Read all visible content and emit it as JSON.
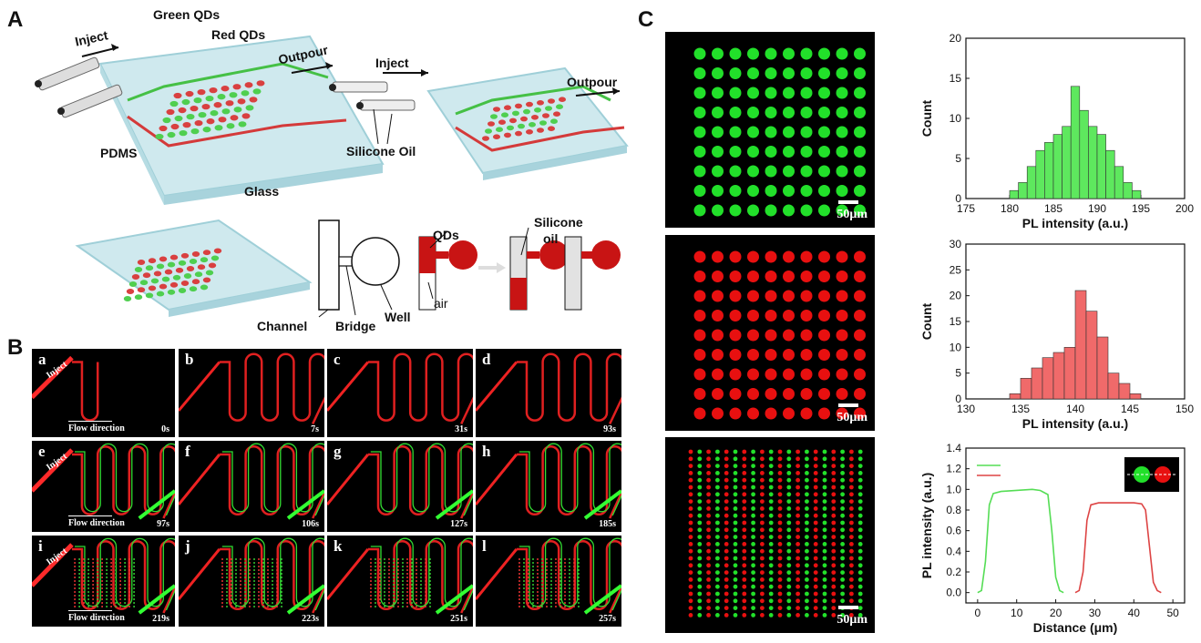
{
  "panels": {
    "A": {
      "letter": "A",
      "labels": {
        "inject": "Inject",
        "green_qds": "Green QDs",
        "red_qds": "Red QDs",
        "outpour": "Outpour",
        "pdms": "PDMS",
        "glass": "Glass",
        "inject2": "Inject",
        "outpour2": "Outpour",
        "silicone_oil": "Silicone Oil",
        "channel": "Channel",
        "bridge": "Bridge",
        "well": "Well",
        "qds": "QDs",
        "air": "air",
        "silicone_oil_line1": "Silicone",
        "silicone_oil_line2": "oil"
      }
    },
    "B": {
      "letter": "B",
      "inject_label": "Inject",
      "flow_label": "Flow direction",
      "tiles": [
        {
          "letter": "a",
          "time": "0s"
        },
        {
          "letter": "b",
          "time": "7s"
        },
        {
          "letter": "c",
          "time": "31s"
        },
        {
          "letter": "d",
          "time": "93s"
        },
        {
          "letter": "e",
          "time": "97s"
        },
        {
          "letter": "f",
          "time": "106s"
        },
        {
          "letter": "g",
          "time": "127s"
        },
        {
          "letter": "h",
          "time": "185s"
        },
        {
          "letter": "i",
          "time": "219s"
        },
        {
          "letter": "j",
          "time": "223s"
        },
        {
          "letter": "k",
          "time": "251s"
        },
        {
          "letter": "l",
          "time": "257s"
        }
      ]
    },
    "C": {
      "letter": "C",
      "scale_bar": "50μm",
      "colors": {
        "green": "#22e02a",
        "red": "#e81010"
      }
    }
  },
  "chart_data": [
    {
      "type": "bar",
      "subtype": "histogram",
      "color": "#5ee85e",
      "xlabel": "PL intensity (a.u.)",
      "ylabel": "Count",
      "xlim": [
        175,
        200
      ],
      "ylim": [
        0,
        20
      ],
      "xticks": [
        175,
        180,
        185,
        190,
        195,
        200
      ],
      "yticks": [
        0,
        5,
        10,
        15,
        20
      ],
      "bin_width": 1,
      "bin_starts": [
        180,
        181,
        182,
        183,
        184,
        185,
        186,
        187,
        188,
        189,
        190,
        191,
        192,
        193,
        194
      ],
      "values": [
        1,
        2,
        4,
        6,
        7,
        8,
        9,
        14,
        11,
        9,
        8,
        6,
        4,
        2,
        1
      ]
    },
    {
      "type": "bar",
      "subtype": "histogram",
      "color": "#f06a6a",
      "xlabel": "PL intensity (a.u.)",
      "ylabel": "Count",
      "xlim": [
        130,
        150
      ],
      "ylim": [
        0,
        30
      ],
      "xticks": [
        130,
        135,
        140,
        145,
        150
      ],
      "yticks": [
        0,
        5,
        10,
        15,
        20,
        25,
        30
      ],
      "bin_width": 1,
      "bin_starts": [
        134,
        135,
        136,
        137,
        138,
        139,
        140,
        141,
        142,
        143,
        144,
        145
      ],
      "values": [
        1,
        4,
        6,
        8,
        9,
        10,
        21,
        17,
        12,
        5,
        3,
        1
      ]
    },
    {
      "type": "line",
      "xlabel": "Distance (μm)",
      "ylabel": "PL  intensity (a.u.)",
      "xlim": [
        -3,
        53
      ],
      "ylim": [
        -0.1,
        1.4
      ],
      "xticks": [
        0,
        10,
        20,
        30,
        40,
        50
      ],
      "yticks": [
        0.0,
        0.2,
        0.4,
        0.6,
        0.8,
        1.0,
        1.2,
        1.4
      ],
      "series": [
        {
          "color": "#55dd55",
          "x": [
            0,
            1,
            2,
            3,
            4,
            6,
            10,
            14,
            16,
            18,
            19,
            20,
            21,
            22
          ],
          "y": [
            0.0,
            0.02,
            0.3,
            0.85,
            0.96,
            0.98,
            0.99,
            1.0,
            0.99,
            0.95,
            0.6,
            0.15,
            0.02,
            0.0
          ]
        },
        {
          "color": "#dd4444",
          "x": [
            25,
            26,
            27,
            28,
            29,
            31,
            35,
            40,
            42,
            43,
            44,
            45,
            46,
            47
          ],
          "y": [
            0.0,
            0.02,
            0.2,
            0.7,
            0.85,
            0.87,
            0.87,
            0.87,
            0.86,
            0.8,
            0.45,
            0.1,
            0.02,
            0.0
          ]
        }
      ]
    }
  ]
}
